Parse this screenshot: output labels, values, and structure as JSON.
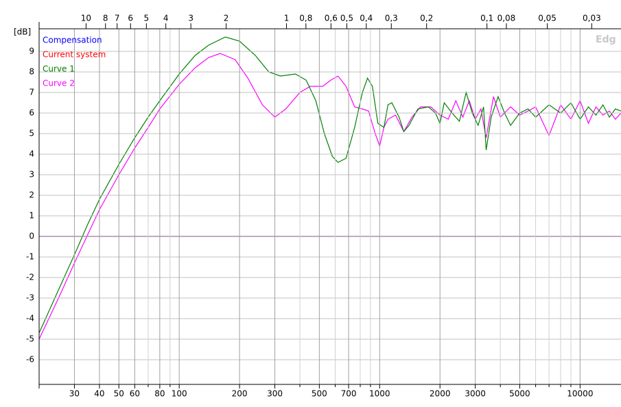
{
  "chart_data": {
    "type": "line",
    "y_label": "[dB]",
    "watermark": "Edg",
    "log_x": true,
    "grid": true,
    "xlim": [
      20,
      16000
    ],
    "ylim": [
      -7.2,
      10.1
    ],
    "xticks": [
      30,
      40,
      50,
      60,
      80,
      100,
      200,
      300,
      500,
      700,
      1000,
      2000,
      3000,
      5000,
      10000
    ],
    "xminorticks": [
      70,
      90,
      400,
      600,
      800,
      900,
      4000,
      6000,
      7000,
      8000,
      9000
    ],
    "yticks": [
      -6,
      -5,
      -4,
      -3,
      -2,
      -1,
      0,
      1,
      2,
      3,
      4,
      5,
      6,
      7,
      8,
      9
    ],
    "x2ticks": [
      10,
      8,
      7,
      6,
      5,
      4,
      3,
      2,
      1,
      {
        "value": 0.8,
        "label": "0,8"
      },
      {
        "value": 0.6,
        "label": "0,6"
      },
      {
        "value": 0.5,
        "label": "0,5"
      },
      {
        "value": 0.4,
        "label": "0,4"
      },
      {
        "value": 0.3,
        "label": "0,3"
      },
      {
        "value": 0.2,
        "label": "0,2"
      },
      {
        "value": 0.1,
        "label": "0,1"
      },
      {
        "value": 0.08,
        "label": "0,08"
      },
      {
        "value": 0.05,
        "label": "0,05"
      },
      {
        "value": 0.03,
        "label": "0,03"
      }
    ],
    "series": [
      {
        "name": "Compensation",
        "color": "#0000ff",
        "x": [
          20,
          16000
        ],
        "values": [
          0,
          0
        ]
      },
      {
        "name": "Current system",
        "color": "#ff0000",
        "x": [
          20,
          16000
        ],
        "values": [
          0,
          0
        ]
      },
      {
        "name": "Curve 1",
        "color": "#008000",
        "x": [
          20,
          25,
          30,
          35,
          40,
          50,
          60,
          70,
          80,
          100,
          120,
          140,
          170,
          200,
          240,
          280,
          320,
          380,
          430,
          480,
          530,
          580,
          620,
          680,
          750,
          820,
          870,
          920,
          980,
          1050,
          1100,
          1150,
          1250,
          1320,
          1400,
          1550,
          1750,
          1900,
          2000,
          2100,
          2300,
          2500,
          2700,
          2900,
          3100,
          3300,
          3400,
          3600,
          3900,
          4200,
          4500,
          5000,
          5500,
          6000,
          7000,
          8000,
          9000,
          10000,
          11000,
          12000,
          13000,
          14000,
          15000,
          16000
        ],
        "values": [
          -4.7,
          -2.6,
          -0.9,
          0.6,
          1.8,
          3.5,
          4.8,
          5.8,
          6.6,
          7.9,
          8.8,
          9.3,
          9.7,
          9.5,
          8.8,
          8.0,
          7.8,
          7.9,
          7.6,
          6.6,
          5.0,
          3.9,
          3.6,
          3.8,
          5.3,
          7.0,
          7.7,
          7.3,
          5.5,
          5.3,
          6.4,
          6.5,
          5.8,
          5.1,
          5.4,
          6.2,
          6.3,
          6.0,
          5.5,
          6.5,
          6.0,
          5.6,
          7.0,
          6.0,
          5.4,
          6.3,
          4.2,
          5.8,
          6.8,
          6.0,
          5.4,
          6.0,
          6.2,
          5.8,
          6.4,
          6.0,
          6.5,
          5.7,
          6.3,
          5.9,
          6.4,
          5.8,
          6.2,
          6.1
        ]
      },
      {
        "name": "Curve 2",
        "color": "#ff00ff",
        "x": [
          20,
          25,
          30,
          35,
          40,
          50,
          60,
          70,
          80,
          100,
          120,
          140,
          160,
          190,
          220,
          260,
          300,
          340,
          400,
          450,
          520,
          570,
          620,
          680,
          750,
          820,
          880,
          950,
          1000,
          1050,
          1100,
          1200,
          1320,
          1450,
          1600,
          1800,
          2000,
          2200,
          2400,
          2600,
          2800,
          3000,
          3200,
          3400,
          3700,
          4000,
          4500,
          5000,
          5500,
          6000,
          7000,
          8000,
          9000,
          10000,
          11000,
          12000,
          13000,
          14000,
          15000,
          16000
        ],
        "values": [
          -5.0,
          -3.0,
          -1.3,
          0.1,
          1.3,
          3.0,
          4.3,
          5.3,
          6.2,
          7.4,
          8.2,
          8.7,
          8.9,
          8.6,
          7.7,
          6.4,
          5.8,
          6.2,
          7.0,
          7.3,
          7.3,
          7.6,
          7.8,
          7.3,
          6.3,
          6.2,
          6.1,
          5.0,
          4.4,
          5.3,
          5.7,
          5.9,
          5.1,
          5.8,
          6.3,
          6.3,
          5.9,
          5.7,
          6.6,
          5.8,
          6.6,
          5.7,
          6.2,
          4.8,
          6.8,
          5.8,
          6.3,
          5.9,
          6.1,
          6.3,
          4.9,
          6.4,
          5.7,
          6.6,
          5.5,
          6.3,
          5.9,
          6.1,
          5.7,
          6.0
        ]
      }
    ]
  }
}
